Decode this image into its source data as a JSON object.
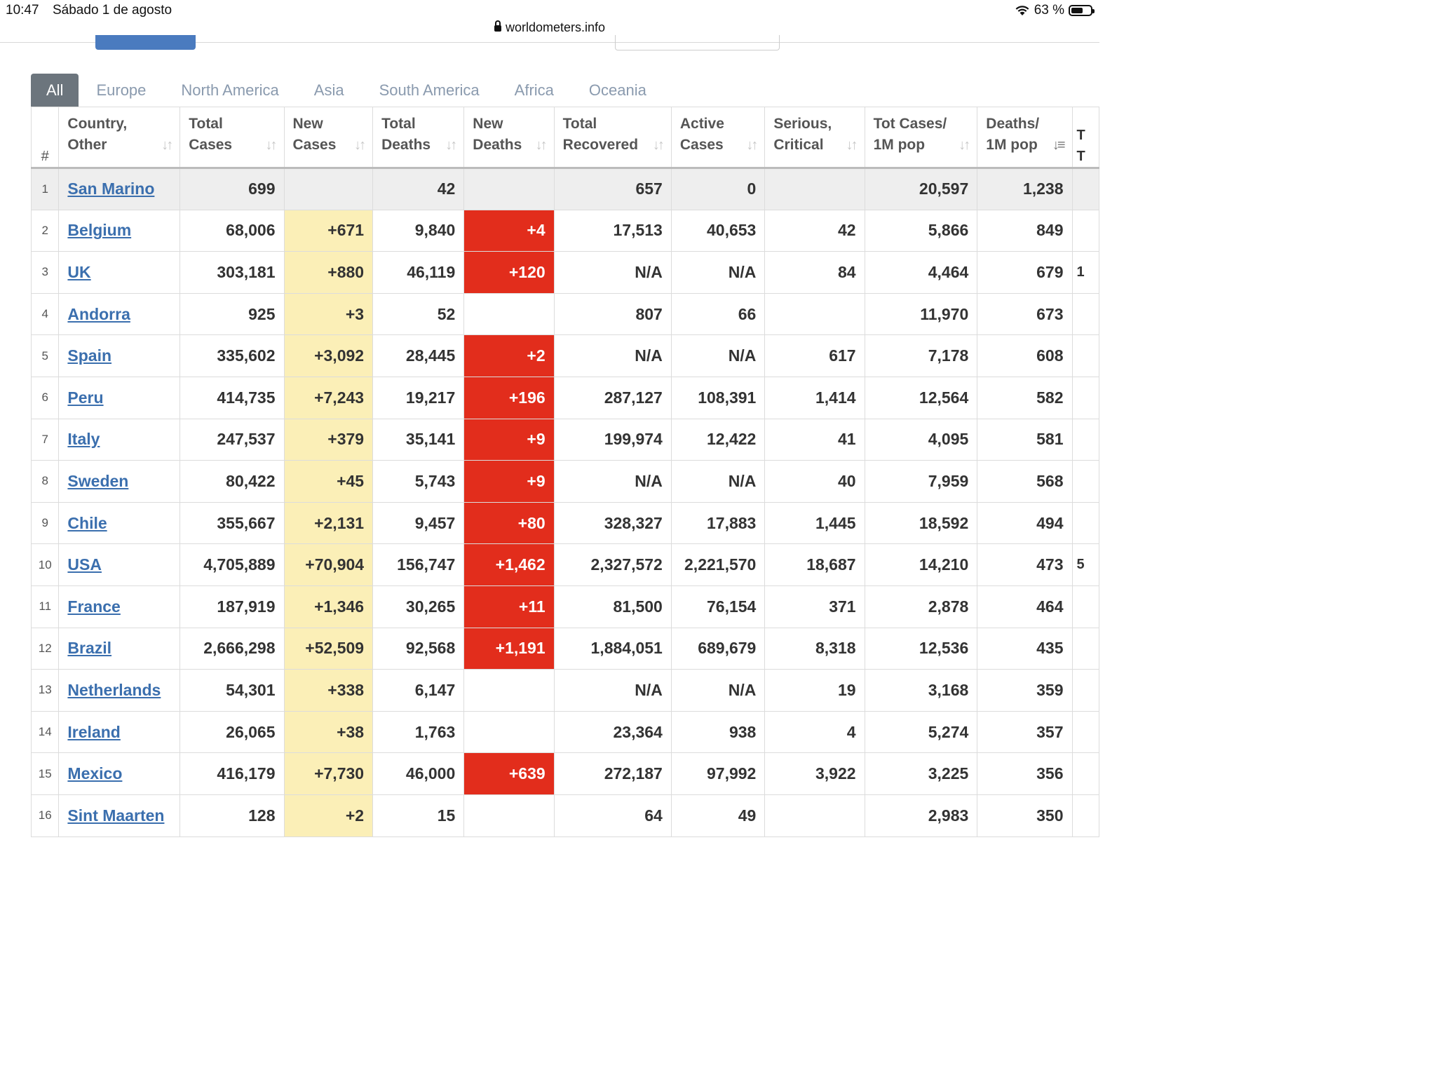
{
  "status_bar": {
    "time": "10:47",
    "date": "Sábado 1 de agosto",
    "battery": "63 %",
    "battery_level": 0.63
  },
  "browser": {
    "url": "worldometers.info"
  },
  "region_tabs": [
    {
      "label": "All",
      "active": true
    },
    {
      "label": "Europe",
      "active": false
    },
    {
      "label": "North America",
      "active": false
    },
    {
      "label": "Asia",
      "active": false
    },
    {
      "label": "South America",
      "active": false
    },
    {
      "label": "Africa",
      "active": false
    },
    {
      "label": "Oceania",
      "active": false
    }
  ],
  "table": {
    "headers": {
      "index": "#",
      "country_1": "Country,",
      "country_2": "Other",
      "total_cases_1": "Total",
      "total_cases_2": "Cases",
      "new_cases_1": "New",
      "new_cases_2": "Cases",
      "total_deaths_1": "Total",
      "total_deaths_2": "Deaths",
      "new_deaths_1": "New",
      "new_deaths_2": "Deaths",
      "total_recovered_1": "Total",
      "total_recovered_2": "Recovered",
      "active_cases_1": "Active",
      "active_cases_2": "Cases",
      "serious_1": "Serious,",
      "serious_2": "Critical",
      "tot_cases_per_m_1": "Tot Cases/",
      "tot_cases_per_m_2": "1M pop",
      "deaths_per_m_1": "Deaths/",
      "deaths_per_m_2": "1M pop",
      "next_col_1": "T",
      "next_col_2": "T"
    },
    "rows": [
      {
        "idx": "1",
        "country": "San Marino",
        "total_cases": "699",
        "new_cases": "",
        "total_deaths": "42",
        "new_deaths": "",
        "total_recovered": "657",
        "active_cases": "0",
        "serious": "",
        "tot_cases_per_m": "20,597",
        "deaths_per_m": "1,238",
        "next": ""
      },
      {
        "idx": "2",
        "country": "Belgium",
        "total_cases": "68,006",
        "new_cases": "+671",
        "total_deaths": "9,840",
        "new_deaths": "+4",
        "total_recovered": "17,513",
        "active_cases": "40,653",
        "serious": "42",
        "tot_cases_per_m": "5,866",
        "deaths_per_m": "849",
        "next": ""
      },
      {
        "idx": "3",
        "country": "UK",
        "total_cases": "303,181",
        "new_cases": "+880",
        "total_deaths": "46,119",
        "new_deaths": "+120",
        "total_recovered": "N/A",
        "active_cases": "N/A",
        "serious": "84",
        "tot_cases_per_m": "4,464",
        "deaths_per_m": "679",
        "next": "1"
      },
      {
        "idx": "4",
        "country": "Andorra",
        "total_cases": "925",
        "new_cases": "+3",
        "total_deaths": "52",
        "new_deaths": "",
        "total_recovered": "807",
        "active_cases": "66",
        "serious": "",
        "tot_cases_per_m": "11,970",
        "deaths_per_m": "673",
        "next": ""
      },
      {
        "idx": "5",
        "country": "Spain",
        "total_cases": "335,602",
        "new_cases": "+3,092",
        "total_deaths": "28,445",
        "new_deaths": "+2",
        "total_recovered": "N/A",
        "active_cases": "N/A",
        "serious": "617",
        "tot_cases_per_m": "7,178",
        "deaths_per_m": "608",
        "next": ""
      },
      {
        "idx": "6",
        "country": "Peru",
        "total_cases": "414,735",
        "new_cases": "+7,243",
        "total_deaths": "19,217",
        "new_deaths": "+196",
        "total_recovered": "287,127",
        "active_cases": "108,391",
        "serious": "1,414",
        "tot_cases_per_m": "12,564",
        "deaths_per_m": "582",
        "next": ""
      },
      {
        "idx": "7",
        "country": "Italy",
        "total_cases": "247,537",
        "new_cases": "+379",
        "total_deaths": "35,141",
        "new_deaths": "+9",
        "total_recovered": "199,974",
        "active_cases": "12,422",
        "serious": "41",
        "tot_cases_per_m": "4,095",
        "deaths_per_m": "581",
        "next": ""
      },
      {
        "idx": "8",
        "country": "Sweden",
        "total_cases": "80,422",
        "new_cases": "+45",
        "total_deaths": "5,743",
        "new_deaths": "+9",
        "total_recovered": "N/A",
        "active_cases": "N/A",
        "serious": "40",
        "tot_cases_per_m": "7,959",
        "deaths_per_m": "568",
        "next": ""
      },
      {
        "idx": "9",
        "country": "Chile",
        "total_cases": "355,667",
        "new_cases": "+2,131",
        "total_deaths": "9,457",
        "new_deaths": "+80",
        "total_recovered": "328,327",
        "active_cases": "17,883",
        "serious": "1,445",
        "tot_cases_per_m": "18,592",
        "deaths_per_m": "494",
        "next": ""
      },
      {
        "idx": "10",
        "country": "USA",
        "total_cases": "4,705,889",
        "new_cases": "+70,904",
        "total_deaths": "156,747",
        "new_deaths": "+1,462",
        "total_recovered": "2,327,572",
        "active_cases": "2,221,570",
        "serious": "18,687",
        "tot_cases_per_m": "14,210",
        "deaths_per_m": "473",
        "next": "5"
      },
      {
        "idx": "11",
        "country": "France",
        "total_cases": "187,919",
        "new_cases": "+1,346",
        "total_deaths": "30,265",
        "new_deaths": "+11",
        "total_recovered": "81,500",
        "active_cases": "76,154",
        "serious": "371",
        "tot_cases_per_m": "2,878",
        "deaths_per_m": "464",
        "next": ""
      },
      {
        "idx": "12",
        "country": "Brazil",
        "total_cases": "2,666,298",
        "new_cases": "+52,509",
        "total_deaths": "92,568",
        "new_deaths": "+1,191",
        "total_recovered": "1,884,051",
        "active_cases": "689,679",
        "serious": "8,318",
        "tot_cases_per_m": "12,536",
        "deaths_per_m": "435",
        "next": ""
      },
      {
        "idx": "13",
        "country": "Netherlands",
        "total_cases": "54,301",
        "new_cases": "+338",
        "total_deaths": "6,147",
        "new_deaths": "",
        "total_recovered": "N/A",
        "active_cases": "N/A",
        "serious": "19",
        "tot_cases_per_m": "3,168",
        "deaths_per_m": "359",
        "next": ""
      },
      {
        "idx": "14",
        "country": "Ireland",
        "total_cases": "26,065",
        "new_cases": "+38",
        "total_deaths": "1,763",
        "new_deaths": "",
        "total_recovered": "23,364",
        "active_cases": "938",
        "serious": "4",
        "tot_cases_per_m": "5,274",
        "deaths_per_m": "357",
        "next": ""
      },
      {
        "idx": "15",
        "country": "Mexico",
        "total_cases": "416,179",
        "new_cases": "+7,730",
        "total_deaths": "46,000",
        "new_deaths": "+639",
        "total_recovered": "272,187",
        "active_cases": "97,992",
        "serious": "3,922",
        "tot_cases_per_m": "3,225",
        "deaths_per_m": "356",
        "next": ""
      },
      {
        "idx": "16",
        "country": "Sint Maarten",
        "total_cases": "128",
        "new_cases": "+2",
        "total_deaths": "15",
        "new_deaths": "",
        "total_recovered": "64",
        "active_cases": "49",
        "serious": "",
        "tot_cases_per_m": "2,983",
        "deaths_per_m": "350",
        "next": ""
      }
    ]
  },
  "colors": {
    "new_cases_bg": "#fbefb7",
    "new_deaths_bg": "#e22d1c",
    "link": "#3b6fae",
    "active_tab": "#6c757d",
    "tab_text": "#8a9aae"
  },
  "icons": {
    "sort": "sort-arrows-icon",
    "sort_active": "sort-desc-icon",
    "lock": "lock-icon",
    "wifi": "wifi-icon",
    "battery": "battery-icon"
  }
}
